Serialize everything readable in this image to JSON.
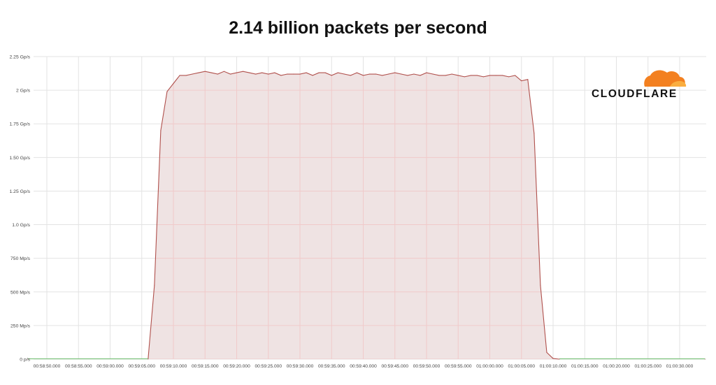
{
  "title": "2.14 billion packets per second",
  "logo": {
    "text": "CLOUDFLARE"
  },
  "colors": {
    "fill": "#efe3e3",
    "line": "#b0504c",
    "baseline": "#7fc47f",
    "grid": "#e3e3e3",
    "gridRed": "#f0caca",
    "logoOrange": "#f38020",
    "logoLight": "#faae40"
  },
  "chart_data": {
    "type": "area",
    "title": "2.14 billion packets per second",
    "xlabel": "",
    "ylabel": "",
    "ylim": [
      0,
      2.25
    ],
    "grid": true,
    "y_ticks": [
      {
        "value": 0,
        "label": "0 p/s"
      },
      {
        "value": 0.25,
        "label": "250 Mp/s"
      },
      {
        "value": 0.5,
        "label": "500 Mp/s"
      },
      {
        "value": 0.75,
        "label": "750 Mp/s"
      },
      {
        "value": 1.0,
        "label": "1.0 Gp/s"
      },
      {
        "value": 1.25,
        "label": "1.25 Gp/s"
      },
      {
        "value": 1.5,
        "label": "1.50 Gp/s"
      },
      {
        "value": 1.75,
        "label": "1.75 Gp/s"
      },
      {
        "value": 2.0,
        "label": "2 Gp/s"
      },
      {
        "value": 2.25,
        "label": "2.25 Gp/s"
      }
    ],
    "x_ticks": [
      "00:58:50.000",
      "00:58:55.000",
      "00:59:00.000",
      "00:59:05.000",
      "00:59:10.000",
      "00:59:15.000",
      "00:59:20.000",
      "00:59:25.000",
      "00:59:30.000",
      "00:59:35.000",
      "00:59:40.000",
      "00:59:45.000",
      "00:59:50.000",
      "00:59:55.000",
      "01:00:00.000",
      "01:00:05.000",
      "01:00:10.000",
      "01:00:15.000",
      "01:00:20.000",
      "01:00:25.000",
      "01:00:30.000"
    ],
    "series": [
      {
        "name": "",
        "points": [
          [
            "00:58:47.000",
            0.0
          ],
          [
            "00:59:06.000",
            0.0
          ],
          [
            "00:59:07.000",
            0.55
          ],
          [
            "00:59:08.000",
            1.7
          ],
          [
            "00:59:09.000",
            1.99
          ],
          [
            "00:59:10.000",
            2.05
          ],
          [
            "00:59:11.000",
            2.11
          ],
          [
            "00:59:12.000",
            2.11
          ],
          [
            "00:59:13.000",
            2.12
          ],
          [
            "00:59:14.000",
            2.13
          ],
          [
            "00:59:15.000",
            2.14
          ],
          [
            "00:59:16.000",
            2.13
          ],
          [
            "00:59:17.000",
            2.12
          ],
          [
            "00:59:18.000",
            2.14
          ],
          [
            "00:59:19.000",
            2.12
          ],
          [
            "00:59:20.000",
            2.13
          ],
          [
            "00:59:21.000",
            2.14
          ],
          [
            "00:59:22.000",
            2.13
          ],
          [
            "00:59:23.000",
            2.12
          ],
          [
            "00:59:24.000",
            2.13
          ],
          [
            "00:59:25.000",
            2.12
          ],
          [
            "00:59:26.000",
            2.13
          ],
          [
            "00:59:27.000",
            2.11
          ],
          [
            "00:59:28.000",
            2.12
          ],
          [
            "00:59:29.000",
            2.12
          ],
          [
            "00:59:30.000",
            2.12
          ],
          [
            "00:59:31.000",
            2.13
          ],
          [
            "00:59:32.000",
            2.11
          ],
          [
            "00:59:33.000",
            2.13
          ],
          [
            "00:59:34.000",
            2.13
          ],
          [
            "00:59:35.000",
            2.11
          ],
          [
            "00:59:36.000",
            2.13
          ],
          [
            "00:59:37.000",
            2.12
          ],
          [
            "00:59:38.000",
            2.11
          ],
          [
            "00:59:39.000",
            2.13
          ],
          [
            "00:59:40.000",
            2.11
          ],
          [
            "00:59:41.000",
            2.12
          ],
          [
            "00:59:42.000",
            2.12
          ],
          [
            "00:59:43.000",
            2.11
          ],
          [
            "00:59:44.000",
            2.12
          ],
          [
            "00:59:45.000",
            2.13
          ],
          [
            "00:59:46.000",
            2.12
          ],
          [
            "00:59:47.000",
            2.11
          ],
          [
            "00:59:48.000",
            2.12
          ],
          [
            "00:59:49.000",
            2.11
          ],
          [
            "00:59:50.000",
            2.13
          ],
          [
            "00:59:51.000",
            2.12
          ],
          [
            "00:59:52.000",
            2.11
          ],
          [
            "00:59:53.000",
            2.11
          ],
          [
            "00:59:54.000",
            2.12
          ],
          [
            "00:59:55.000",
            2.11
          ],
          [
            "00:59:56.000",
            2.1
          ],
          [
            "00:59:57.000",
            2.11
          ],
          [
            "00:59:58.000",
            2.11
          ],
          [
            "00:59:59.000",
            2.1
          ],
          [
            "01:00:00.000",
            2.11
          ],
          [
            "01:00:01.000",
            2.11
          ],
          [
            "01:00:02.000",
            2.11
          ],
          [
            "01:00:03.000",
            2.1
          ],
          [
            "01:00:04.000",
            2.11
          ],
          [
            "01:00:05.000",
            2.07
          ],
          [
            "01:00:06.000",
            2.08
          ],
          [
            "01:00:07.000",
            1.68
          ],
          [
            "01:00:08.000",
            0.55
          ],
          [
            "01:00:09.000",
            0.05
          ],
          [
            "01:00:10.000",
            0.005
          ],
          [
            "01:00:11.000",
            0.0
          ],
          [
            "01:00:34.000",
            0.0
          ]
        ]
      }
    ]
  }
}
